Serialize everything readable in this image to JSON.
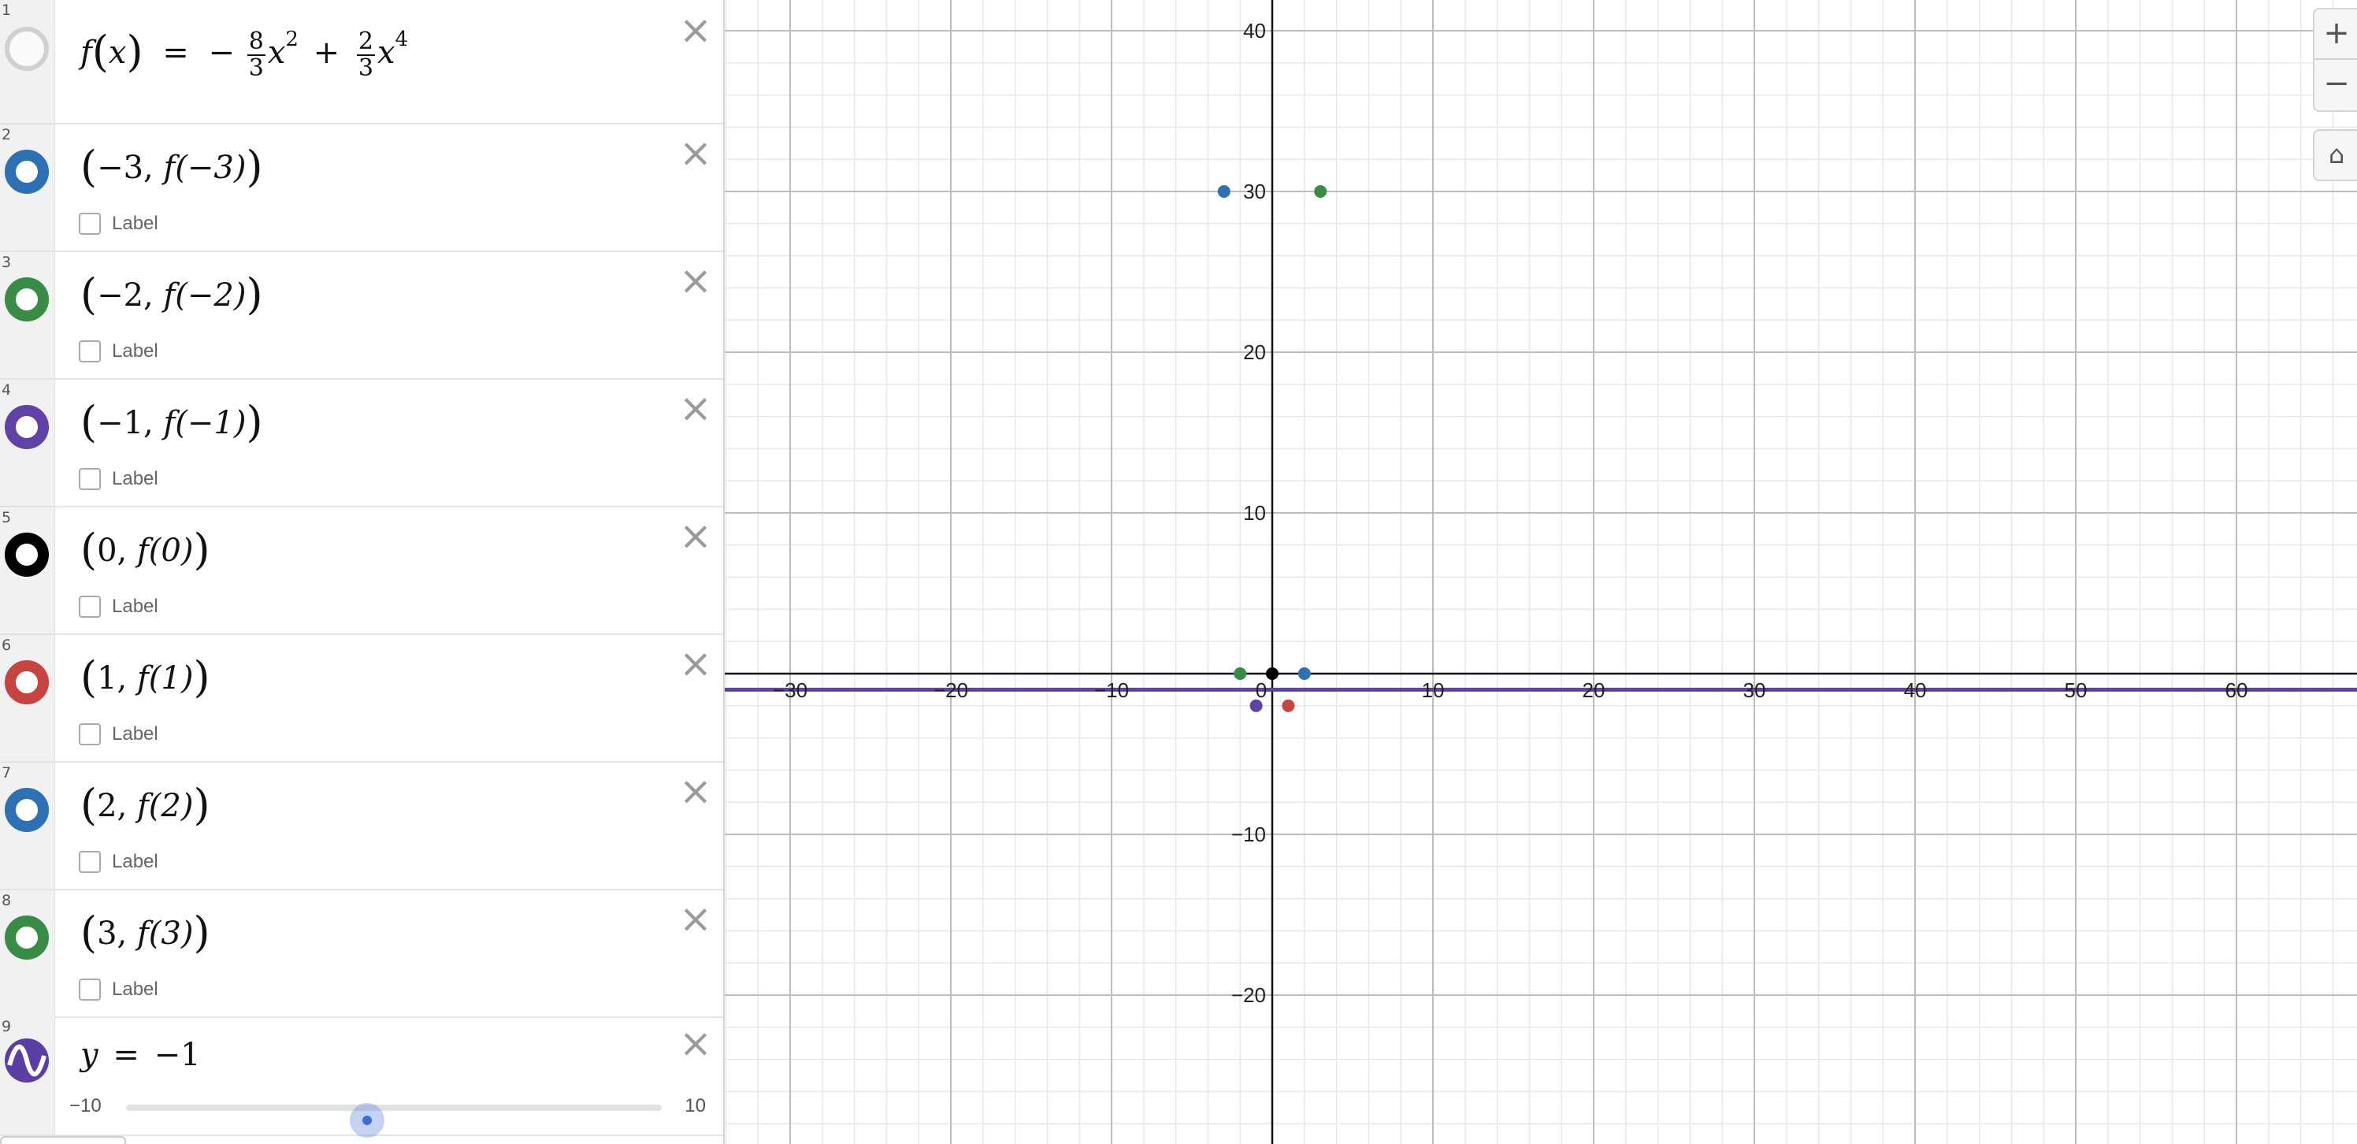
{
  "expressions": [
    {
      "index": "1",
      "color": "",
      "kind": "function",
      "parts": {
        "fname": "f",
        "var": "x",
        "eq": "=",
        "sign": "−",
        "n1": "8",
        "d1": "3",
        "p1": "2",
        "plus": "+",
        "n2": "2",
        "d2": "3",
        "p2": "4"
      }
    },
    {
      "index": "2",
      "color": "#2d70b3",
      "kind": "point",
      "xarg": "−3,",
      "call": "f(−3)",
      "label": "Label"
    },
    {
      "index": "3",
      "color": "#388c46",
      "kind": "point",
      "xarg": "−2,",
      "call": "f(−2)",
      "label": "Label"
    },
    {
      "index": "4",
      "color": "#6042a6",
      "kind": "point",
      "xarg": "−1,",
      "call": "f(−1)",
      "label": "Label"
    },
    {
      "index": "5",
      "color": "#000000",
      "kind": "point",
      "xarg": "0,",
      "call": "f(0)",
      "label": "Label"
    },
    {
      "index": "6",
      "color": "#c74440",
      "kind": "point",
      "xarg": "1,",
      "call": "f(1)",
      "label": "Label"
    },
    {
      "index": "7",
      "color": "#2d70b3",
      "kind": "point",
      "xarg": "2,",
      "call": "f(2)",
      "label": "Label"
    },
    {
      "index": "8",
      "color": "#388c46",
      "kind": "point",
      "xarg": "3,",
      "call": "f(3)",
      "label": "Label"
    },
    {
      "index": "9",
      "color": "#6042a6",
      "kind": "slider",
      "lhs": "y",
      "eq": "=",
      "value": "−1",
      "slider": {
        "min": "−10",
        "max": "10",
        "value": -1
      }
    }
  ],
  "icons": {
    "close": "close-icon",
    "zoom_in": "zoom-in-icon",
    "zoom_out": "zoom-out-icon",
    "home": "home-icon"
  },
  "zoom": {
    "in_label": "+",
    "out_label": "−",
    "home_label": "⌂"
  },
  "chart_data": {
    "type": "scatter",
    "xlim": [
      -34,
      67
    ],
    "ylim": [
      -28,
      42
    ],
    "grid": true,
    "x_ticks": [
      "−30",
      "−20",
      "−10",
      "0",
      "10",
      "20",
      "30",
      "40",
      "50",
      "60"
    ],
    "x_tick_values": [
      -30,
      -20,
      -10,
      0,
      10,
      20,
      30,
      40,
      50,
      60
    ],
    "y_ticks": [
      "40",
      "30",
      "20",
      "10",
      "−10",
      "−20"
    ],
    "y_tick_values": [
      40,
      30,
      20,
      10,
      -10,
      -20
    ],
    "horizontal_lines": [
      {
        "y": -1,
        "color": "#6042a6"
      }
    ],
    "points": [
      {
        "x": -3,
        "y": 30,
        "color": "#2d70b3"
      },
      {
        "x": -2,
        "y": 0,
        "color": "#388c46"
      },
      {
        "x": -1,
        "y": -2,
        "color": "#6042a6"
      },
      {
        "x": 0,
        "y": 0,
        "color": "#000000"
      },
      {
        "x": 1,
        "y": -2,
        "color": "#c74440"
      },
      {
        "x": 2,
        "y": 0,
        "color": "#2d70b3"
      },
      {
        "x": 3,
        "y": 30,
        "color": "#388c46"
      }
    ]
  }
}
